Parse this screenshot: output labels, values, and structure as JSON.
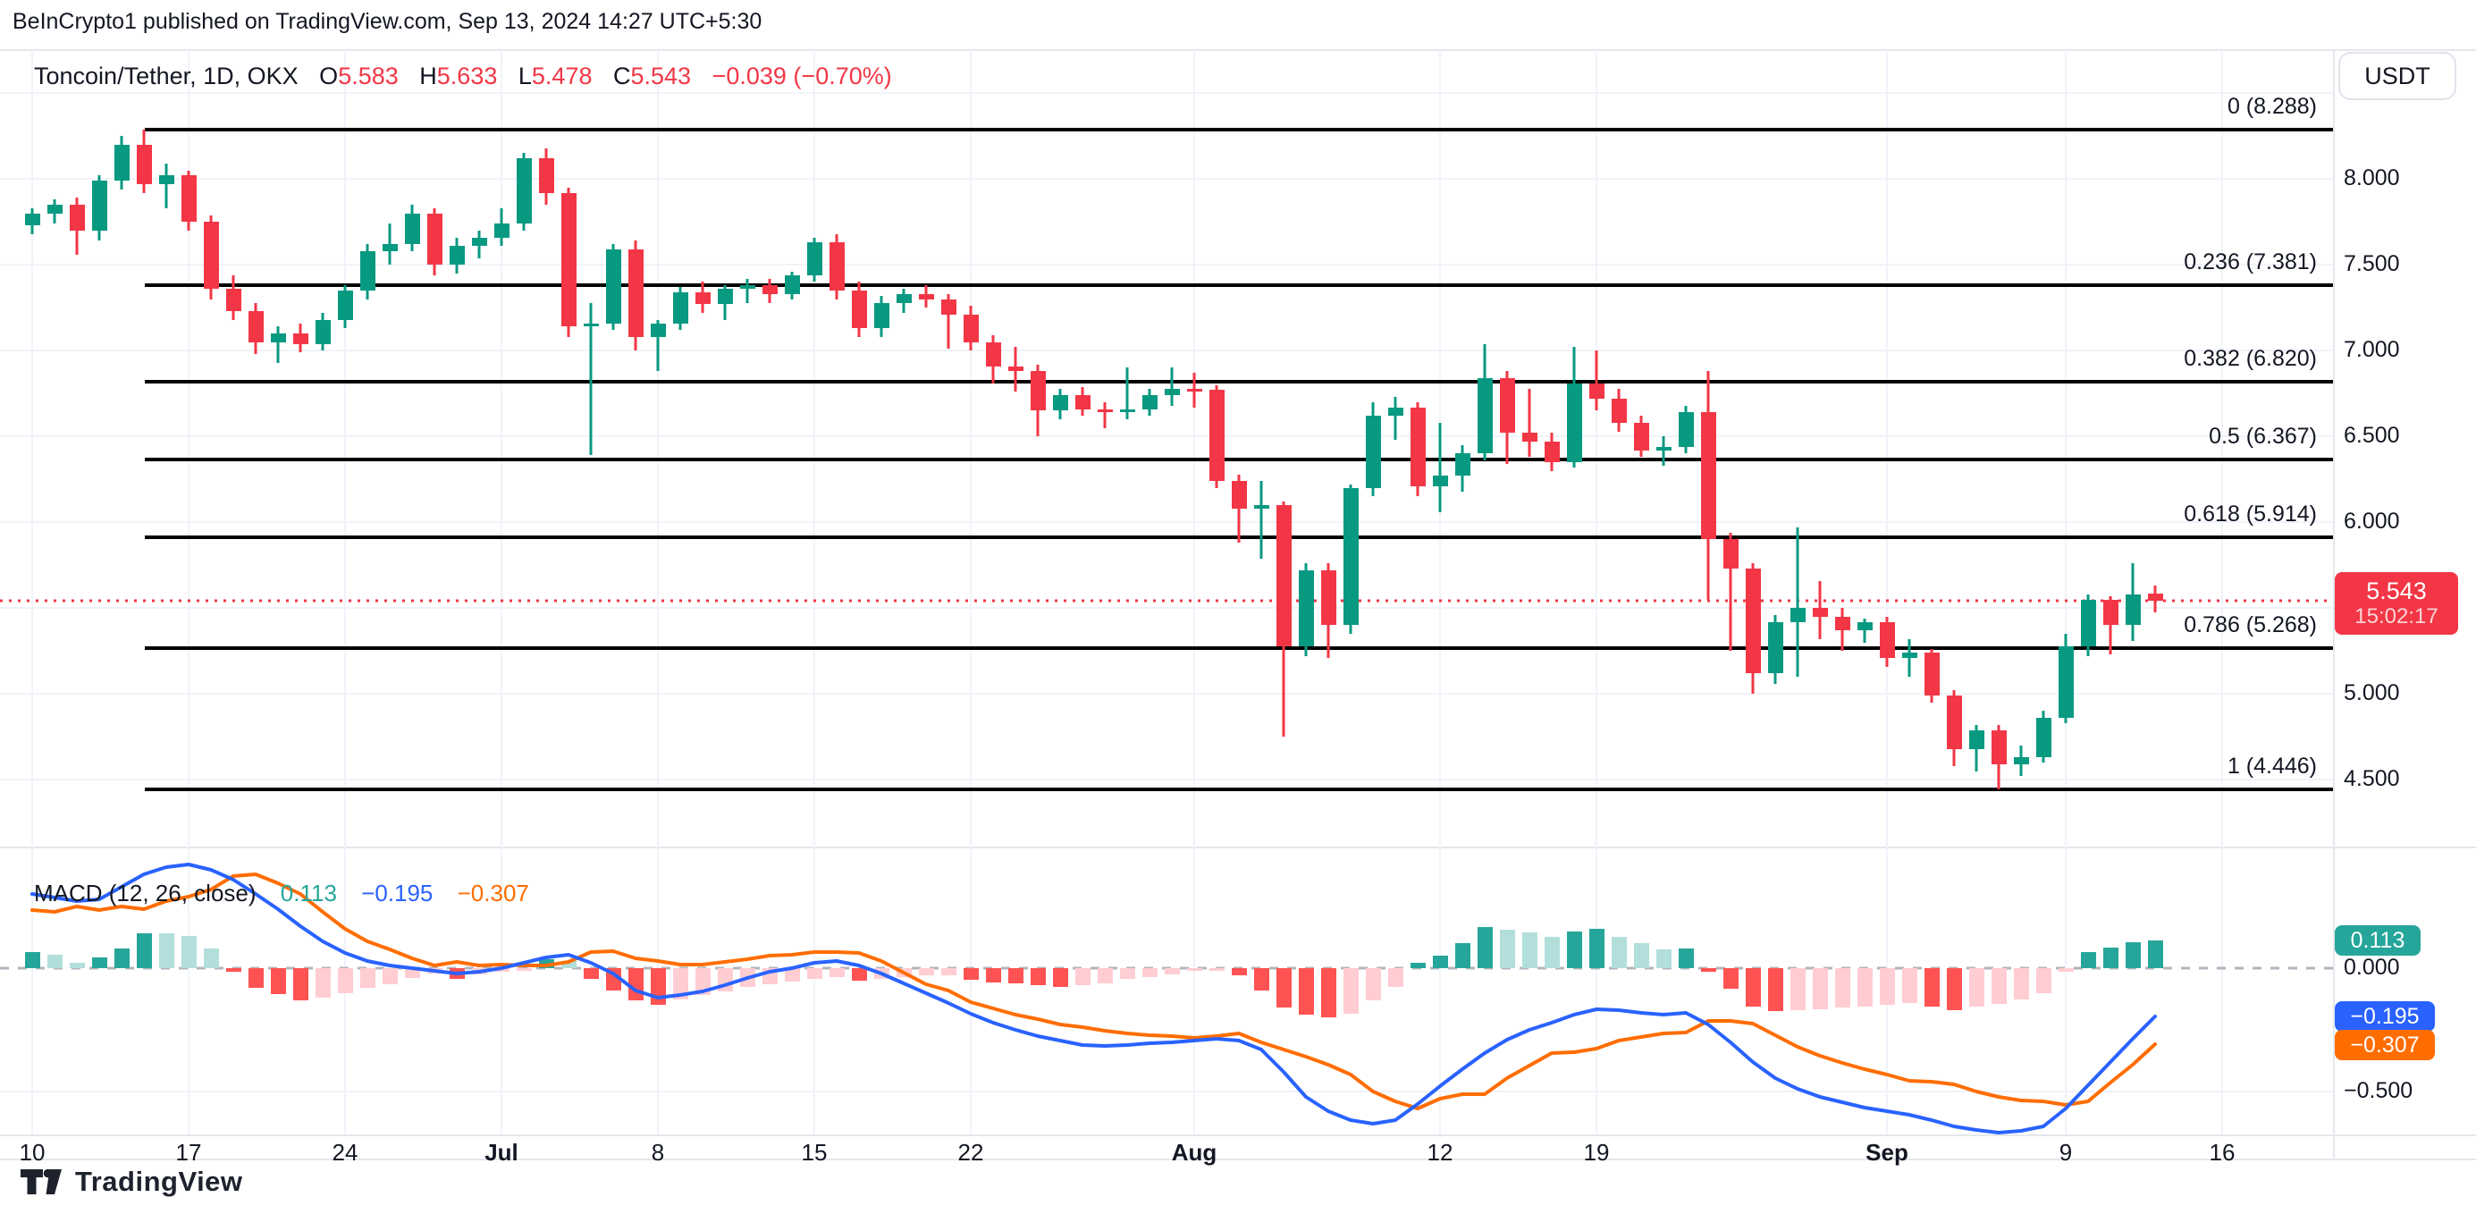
{
  "header": {
    "attribution": "BeInCrypto1 published on TradingView.com, Sep 13, 2024 14:27 UTC+5:30"
  },
  "toolbar": {
    "currency_button": "USDT"
  },
  "legend": {
    "symbol": "Toncoin/Tether, 1D, OKX",
    "open_label": "O",
    "open": "5.583",
    "high_label": "H",
    "high": "5.633",
    "low_label": "L",
    "low": "5.478",
    "close_label": "C",
    "close": "5.543",
    "change": "−0.039 (−0.70%)"
  },
  "price_badge": {
    "price": "5.543",
    "countdown": "15:02:17"
  },
  "macd_legend": {
    "title": "MACD (12, 26, close)",
    "hist_value": "0.113",
    "macd_value": "−0.195",
    "signal_value": "−0.307"
  },
  "macd_badges": {
    "hist": "0.113",
    "macd": "−0.195",
    "signal": "−0.307"
  },
  "footer": {
    "brand": "TradingView"
  },
  "colors": {
    "up": "#089981",
    "down": "#F23645",
    "macd_line": "#2962FF",
    "signal_line": "#FF6D00",
    "hist_up_grow": "#26A69A",
    "hist_up_fall": "#B2DFDB",
    "hist_down_fall": "#FF5252",
    "hist_down_grow": "#FFCDD2",
    "fib_line": "#000000",
    "grid": "#F0F3FA",
    "axis_text": "#131722",
    "badge_price_bg": "#F23645",
    "badge_hist_bg": "#26A69A",
    "badge_macd_bg": "#2962FF",
    "badge_signal_bg": "#FF6D00",
    "dotted_price_line": "#F23645",
    "zero_line": "#B2B5BE"
  },
  "chart_data": [
    {
      "type": "candlestick",
      "title": "Toncoin/Tether, 1D, OKX",
      "last_price": 5.543,
      "ylim": [
        4.12,
        8.73
      ],
      "grid": true,
      "y_ticks": [
        {
          "label": "8.000",
          "value": 8.0
        },
        {
          "label": "7.500",
          "value": 7.5
        },
        {
          "label": "7.000",
          "value": 7.0
        },
        {
          "label": "6.500",
          "value": 6.5
        },
        {
          "label": "6.000",
          "value": 6.0
        },
        {
          "label": "5.000",
          "value": 5.0
        },
        {
          "label": "4.500",
          "value": 4.5
        }
      ],
      "x_ticks": [
        {
          "label": "10",
          "day": 0,
          "major": false
        },
        {
          "label": "17",
          "day": 7,
          "major": false
        },
        {
          "label": "24",
          "day": 14,
          "major": false
        },
        {
          "label": "Jul",
          "day": 21,
          "major": true
        },
        {
          "label": "8",
          "day": 28,
          "major": false
        },
        {
          "label": "15",
          "day": 35,
          "major": false
        },
        {
          "label": "22",
          "day": 42,
          "major": false
        },
        {
          "label": "Aug",
          "day": 52,
          "major": true
        },
        {
          "label": "12",
          "day": 63,
          "major": false
        },
        {
          "label": "19",
          "day": 70,
          "major": false
        },
        {
          "label": "Sep",
          "day": 83,
          "major": true
        },
        {
          "label": "9",
          "day": 91,
          "major": false
        },
        {
          "label": "16",
          "day": 98,
          "major": false
        }
      ],
      "fib_levels": [
        {
          "label": "0 (8.288)",
          "value": 8.288
        },
        {
          "label": "0.236 (7.381)",
          "value": 7.381
        },
        {
          "label": "0.382 (6.820)",
          "value": 6.82
        },
        {
          "label": "0.5 (6.367)",
          "value": 6.367
        },
        {
          "label": "0.618 (5.914)",
          "value": 5.914
        },
        {
          "label": "0.786 (5.268)",
          "value": 5.268
        },
        {
          "label": "1 (4.446)",
          "value": 4.446
        }
      ],
      "ohlc": [
        [
          7.73,
          7.83,
          7.68,
          7.8
        ],
        [
          7.8,
          7.88,
          7.74,
          7.85
        ],
        [
          7.85,
          7.89,
          7.56,
          7.7
        ],
        [
          7.7,
          8.02,
          7.64,
          7.99
        ],
        [
          7.99,
          8.25,
          7.94,
          8.2
        ],
        [
          8.2,
          8.29,
          7.92,
          7.97
        ],
        [
          7.97,
          8.09,
          7.83,
          8.02
        ],
        [
          8.02,
          8.05,
          7.7,
          7.75
        ],
        [
          7.75,
          7.79,
          7.3,
          7.36
        ],
        [
          7.36,
          7.44,
          7.18,
          7.23
        ],
        [
          7.23,
          7.28,
          6.98,
          7.05
        ],
        [
          7.05,
          7.14,
          6.93,
          7.1
        ],
        [
          7.1,
          7.16,
          6.99,
          7.04
        ],
        [
          7.04,
          7.22,
          7.0,
          7.18
        ],
        [
          7.18,
          7.38,
          7.13,
          7.35
        ],
        [
          7.35,
          7.62,
          7.3,
          7.58
        ],
        [
          7.58,
          7.74,
          7.5,
          7.62
        ],
        [
          7.62,
          7.85,
          7.58,
          7.8
        ],
        [
          7.8,
          7.83,
          7.44,
          7.5
        ],
        [
          7.5,
          7.66,
          7.45,
          7.61
        ],
        [
          7.61,
          7.7,
          7.54,
          7.66
        ],
        [
          7.66,
          7.83,
          7.61,
          7.74
        ],
        [
          7.74,
          8.15,
          7.7,
          8.12
        ],
        [
          8.12,
          8.18,
          7.85,
          7.92
        ],
        [
          7.92,
          7.95,
          7.08,
          7.14
        ],
        [
          7.14,
          7.28,
          6.39,
          7.16
        ],
        [
          7.16,
          7.62,
          7.12,
          7.59
        ],
        [
          7.59,
          7.64,
          7.0,
          7.08
        ],
        [
          7.08,
          7.18,
          6.88,
          7.16
        ],
        [
          7.16,
          7.37,
          7.12,
          7.34
        ],
        [
          7.34,
          7.4,
          7.22,
          7.27
        ],
        [
          7.27,
          7.38,
          7.18,
          7.36
        ],
        [
          7.36,
          7.42,
          7.28,
          7.38
        ],
        [
          7.38,
          7.42,
          7.28,
          7.33
        ],
        [
          7.33,
          7.46,
          7.3,
          7.44
        ],
        [
          7.44,
          7.66,
          7.4,
          7.63
        ],
        [
          7.63,
          7.68,
          7.3,
          7.35
        ],
        [
          7.35,
          7.4,
          7.08,
          7.13
        ],
        [
          7.13,
          7.32,
          7.08,
          7.28
        ],
        [
          7.28,
          7.36,
          7.22,
          7.33
        ],
        [
          7.33,
          7.38,
          7.25,
          7.3
        ],
        [
          7.3,
          7.33,
          7.01,
          7.21
        ],
        [
          7.21,
          7.26,
          7.0,
          7.05
        ],
        [
          7.05,
          7.09,
          6.81,
          6.91
        ],
        [
          6.91,
          7.02,
          6.76,
          6.88
        ],
        [
          6.88,
          6.92,
          6.5,
          6.65
        ],
        [
          6.65,
          6.78,
          6.6,
          6.74
        ],
        [
          6.74,
          6.79,
          6.62,
          6.66
        ],
        [
          6.66,
          6.7,
          6.55,
          6.64
        ],
        [
          6.64,
          6.9,
          6.6,
          6.66
        ],
        [
          6.66,
          6.78,
          6.62,
          6.74
        ],
        [
          6.74,
          6.9,
          6.68,
          6.78
        ],
        [
          6.78,
          6.87,
          6.67,
          6.77
        ],
        [
          6.77,
          6.8,
          6.2,
          6.24
        ],
        [
          6.24,
          6.28,
          5.88,
          6.08
        ],
        [
          6.08,
          6.24,
          5.79,
          6.1
        ],
        [
          6.1,
          6.12,
          4.75,
          5.28
        ],
        [
          5.28,
          5.76,
          5.22,
          5.72
        ],
        [
          5.72,
          5.76,
          5.21,
          5.4
        ],
        [
          5.4,
          6.22,
          5.35,
          6.2
        ],
        [
          6.2,
          6.7,
          6.15,
          6.62
        ],
        [
          6.62,
          6.73,
          6.48,
          6.67
        ],
        [
          6.67,
          6.7,
          6.15,
          6.21
        ],
        [
          6.21,
          6.58,
          6.06,
          6.27
        ],
        [
          6.27,
          6.45,
          6.18,
          6.4
        ],
        [
          6.4,
          7.04,
          6.36,
          6.84
        ],
        [
          6.84,
          6.88,
          6.34,
          6.52
        ],
        [
          6.52,
          6.78,
          6.38,
          6.47
        ],
        [
          6.47,
          6.52,
          6.3,
          6.35
        ],
        [
          6.35,
          7.02,
          6.32,
          6.81
        ],
        [
          6.81,
          7.0,
          6.65,
          6.72
        ],
        [
          6.72,
          6.78,
          6.53,
          6.58
        ],
        [
          6.58,
          6.62,
          6.38,
          6.42
        ],
        [
          6.42,
          6.5,
          6.33,
          6.44
        ],
        [
          6.44,
          6.68,
          6.4,
          6.64
        ],
        [
          6.64,
          6.88,
          5.55,
          5.9
        ],
        [
          5.9,
          5.94,
          5.25,
          5.73
        ],
        [
          5.73,
          5.76,
          5.0,
          5.12
        ],
        [
          5.12,
          5.46,
          5.06,
          5.42
        ],
        [
          5.42,
          5.97,
          5.1,
          5.5
        ],
        [
          5.5,
          5.66,
          5.32,
          5.45
        ],
        [
          5.45,
          5.5,
          5.25,
          5.37
        ],
        [
          5.37,
          5.44,
          5.3,
          5.42
        ],
        [
          5.42,
          5.45,
          5.16,
          5.21
        ],
        [
          5.21,
          5.32,
          5.1,
          5.24
        ],
        [
          5.24,
          5.26,
          4.95,
          4.99
        ],
        [
          4.99,
          5.02,
          4.58,
          4.68
        ],
        [
          4.68,
          4.82,
          4.55,
          4.79
        ],
        [
          4.79,
          4.82,
          4.446,
          4.59
        ],
        [
          4.59,
          4.7,
          4.52,
          4.63
        ],
        [
          4.63,
          4.9,
          4.6,
          4.86
        ],
        [
          4.86,
          5.35,
          4.83,
          5.28
        ],
        [
          5.28,
          5.58,
          5.22,
          5.55
        ],
        [
          5.55,
          5.57,
          5.23,
          5.4
        ],
        [
          5.4,
          5.76,
          5.31,
          5.58
        ],
        [
          5.583,
          5.633,
          5.478,
          5.543
        ]
      ]
    },
    {
      "type": "bar",
      "title": "MACD (12, 26, close)",
      "ylim": [
        -0.78,
        0.55
      ],
      "y_ticks": [
        {
          "label": "0.000",
          "value": 0.0
        },
        {
          "label": "−0.500",
          "value": -0.5
        }
      ],
      "histogram": [
        0.065,
        0.055,
        0.02,
        0.045,
        0.08,
        0.14,
        0.14,
        0.13,
        0.08,
        -0.015,
        -0.08,
        -0.105,
        -0.13,
        -0.12,
        -0.1,
        -0.08,
        -0.065,
        -0.04,
        -0.02,
        -0.045,
        -0.025,
        -0.015,
        -0.01,
        0.035,
        0.03,
        -0.045,
        -0.09,
        -0.13,
        -0.15,
        -0.125,
        -0.11,
        -0.095,
        -0.075,
        -0.065,
        -0.055,
        -0.045,
        -0.035,
        -0.05,
        -0.042,
        -0.035,
        -0.03,
        -0.03,
        -0.048,
        -0.058,
        -0.062,
        -0.068,
        -0.075,
        -0.07,
        -0.06,
        -0.045,
        -0.035,
        -0.025,
        -0.012,
        -0.01,
        -0.03,
        -0.09,
        -0.16,
        -0.19,
        -0.2,
        -0.185,
        -0.13,
        -0.075,
        0.02,
        0.05,
        0.1,
        0.165,
        0.155,
        0.145,
        0.125,
        0.15,
        0.16,
        0.125,
        0.1,
        0.075,
        0.08,
        -0.015,
        -0.085,
        -0.155,
        -0.175,
        -0.17,
        -0.165,
        -0.16,
        -0.155,
        -0.15,
        -0.14,
        -0.155,
        -0.17,
        -0.155,
        -0.145,
        -0.125,
        -0.1,
        -0.015,
        0.065,
        0.085,
        0.105,
        0.113
      ],
      "macd": [
        0.3,
        0.285,
        0.27,
        0.28,
        0.33,
        0.38,
        0.41,
        0.42,
        0.4,
        0.36,
        0.3,
        0.24,
        0.17,
        0.11,
        0.06,
        0.03,
        0.01,
        0.0,
        -0.01,
        -0.02,
        -0.015,
        0.0,
        0.02,
        0.045,
        0.055,
        0.02,
        -0.02,
        -0.09,
        -0.12,
        -0.11,
        -0.095,
        -0.07,
        -0.04,
        -0.015,
        0.0,
        0.02,
        0.03,
        0.01,
        -0.02,
        -0.06,
        -0.1,
        -0.14,
        -0.185,
        -0.22,
        -0.25,
        -0.275,
        -0.295,
        -0.31,
        -0.315,
        -0.31,
        -0.305,
        -0.3,
        -0.295,
        -0.285,
        -0.295,
        -0.33,
        -0.42,
        -0.52,
        -0.58,
        -0.615,
        -0.63,
        -0.615,
        -0.55,
        -0.48,
        -0.41,
        -0.345,
        -0.29,
        -0.25,
        -0.22,
        -0.19,
        -0.165,
        -0.17,
        -0.18,
        -0.19,
        -0.18,
        -0.23,
        -0.3,
        -0.38,
        -0.445,
        -0.49,
        -0.52,
        -0.545,
        -0.565,
        -0.58,
        -0.595,
        -0.615,
        -0.64,
        -0.655,
        -0.665,
        -0.66,
        -0.64,
        -0.57,
        -0.475,
        -0.38,
        -0.285,
        -0.195
      ],
      "signal": [
        0.235,
        0.23,
        0.25,
        0.235,
        0.25,
        0.24,
        0.27,
        0.29,
        0.32,
        0.375,
        0.38,
        0.345,
        0.3,
        0.23,
        0.16,
        0.11,
        0.075,
        0.04,
        0.01,
        0.025,
        0.01,
        0.015,
        0.01,
        0.01,
        0.025,
        0.065,
        0.07,
        0.04,
        0.03,
        0.015,
        0.015,
        0.025,
        0.035,
        0.05,
        0.055,
        0.065,
        0.065,
        0.06,
        0.03,
        -0.018,
        -0.065,
        -0.092,
        -0.137,
        -0.162,
        -0.188,
        -0.207,
        -0.227,
        -0.24,
        -0.255,
        -0.265,
        -0.27,
        -0.275,
        -0.283,
        -0.275,
        -0.265,
        -0.3,
        -0.33,
        -0.36,
        -0.39,
        -0.43,
        -0.5,
        -0.54,
        -0.57,
        -0.53,
        -0.51,
        -0.51,
        -0.445,
        -0.395,
        -0.345,
        -0.34,
        -0.325,
        -0.295,
        -0.28,
        -0.265,
        -0.26,
        -0.215,
        -0.215,
        -0.225,
        -0.27,
        -0.32,
        -0.355,
        -0.385,
        -0.41,
        -0.43,
        -0.455,
        -0.46,
        -0.47,
        -0.5,
        -0.52,
        -0.535,
        -0.54,
        -0.555,
        -0.54,
        -0.465,
        -0.39,
        -0.307
      ]
    }
  ]
}
